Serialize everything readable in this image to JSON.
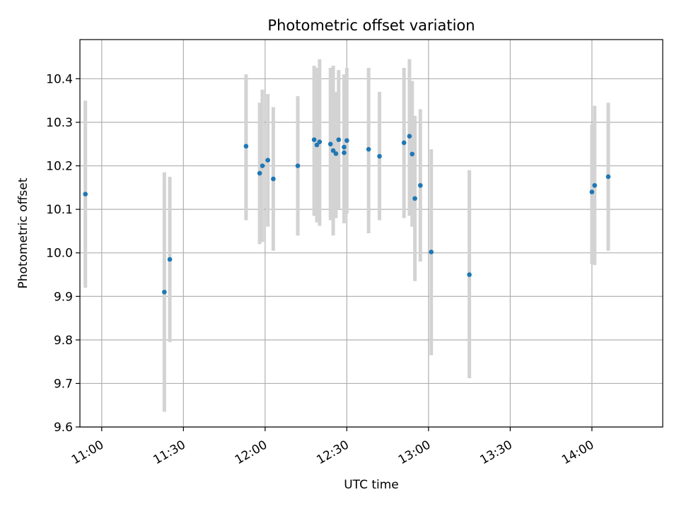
{
  "chart_data": {
    "type": "scatter",
    "title": "Photometric offset variation",
    "xlabel": "UTC time",
    "ylabel": "Photometric offset",
    "grid": true,
    "x_axis_type": "time",
    "x_date": "2000-01-01",
    "xlim": [
      "10:52",
      "14:26"
    ],
    "ylim": [
      9.6,
      10.49
    ],
    "x_ticks": [
      "11:00",
      "11:30",
      "12:00",
      "12:30",
      "13:00",
      "13:30",
      "14:00"
    ],
    "y_ticks": [
      9.6,
      9.7,
      9.8,
      9.9,
      10.0,
      10.1,
      10.2,
      10.3,
      10.4
    ],
    "y_tick_labels": [
      "9.6",
      "9.7",
      "9.8",
      "9.9",
      "10.0",
      "10.1",
      "10.2",
      "10.3",
      "10.4"
    ],
    "colors": {
      "point": "#1f77b4",
      "error_bar": "#d3d3d3",
      "grid": "#b0b0b0",
      "axis": "#000000"
    },
    "series": [
      {
        "points": [
          {
            "x": "10:54",
            "y": 10.135,
            "y_low": 9.92,
            "y_high": 10.35
          },
          {
            "x": "11:23",
            "y": 9.91,
            "y_low": 9.635,
            "y_high": 10.185
          },
          {
            "x": "11:25",
            "y": 9.985,
            "y_low": 9.795,
            "y_high": 10.175
          },
          {
            "x": "11:53",
            "y": 10.245,
            "y_low": 10.075,
            "y_high": 10.41
          },
          {
            "x": "11:58",
            "y": 10.183,
            "y_low": 10.02,
            "y_high": 10.345
          },
          {
            "x": "11:59",
            "y": 10.2,
            "y_low": 10.025,
            "y_high": 10.375
          },
          {
            "x": "12:01",
            "y": 10.213,
            "y_low": 10.06,
            "y_high": 10.365
          },
          {
            "x": "12:03",
            "y": 10.17,
            "y_low": 10.005,
            "y_high": 10.335
          },
          {
            "x": "12:12",
            "y": 10.2,
            "y_low": 10.04,
            "y_high": 10.36
          },
          {
            "x": "12:18",
            "y": 10.26,
            "y_low": 10.085,
            "y_high": 10.43
          },
          {
            "x": "12:19",
            "y": 10.248,
            "y_low": 10.07,
            "y_high": 10.425
          },
          {
            "x": "12:20",
            "y": 10.255,
            "y_low": 10.062,
            "y_high": 10.445
          },
          {
            "x": "12:24",
            "y": 10.25,
            "y_low": 10.075,
            "y_high": 10.425
          },
          {
            "x": "12:25",
            "y": 10.235,
            "y_low": 10.04,
            "y_high": 10.43
          },
          {
            "x": "12:26",
            "y": 10.228,
            "y_low": 10.08,
            "y_high": 10.37
          },
          {
            "x": "12:27",
            "y": 10.26,
            "y_low": 10.1,
            "y_high": 10.42
          },
          {
            "x": "12:29",
            "y": 10.23,
            "y_low": 10.068,
            "y_high": 10.41
          },
          {
            "x": "12:29",
            "y": 10.243,
            "y_low": 10.09,
            "y_high": 10.39
          },
          {
            "x": "12:30",
            "y": 10.258,
            "y_low": 10.09,
            "y_high": 10.425
          },
          {
            "x": "12:38",
            "y": 10.238,
            "y_low": 10.045,
            "y_high": 10.425
          },
          {
            "x": "12:42",
            "y": 10.222,
            "y_low": 10.075,
            "y_high": 10.37
          },
          {
            "x": "12:51",
            "y": 10.253,
            "y_low": 10.08,
            "y_high": 10.425
          },
          {
            "x": "12:53",
            "y": 10.268,
            "y_low": 10.085,
            "y_high": 10.445
          },
          {
            "x": "12:54",
            "y": 10.227,
            "y_low": 10.06,
            "y_high": 10.395
          },
          {
            "x": "12:55",
            "y": 10.125,
            "y_low": 9.935,
            "y_high": 10.315
          },
          {
            "x": "12:57",
            "y": 10.155,
            "y_low": 9.98,
            "y_high": 10.33
          },
          {
            "x": "13:01",
            "y": 10.002,
            "y_low": 9.765,
            "y_high": 10.238
          },
          {
            "x": "13:15",
            "y": 9.95,
            "y_low": 9.712,
            "y_high": 10.19
          },
          {
            "x": "14:00",
            "y": 10.14,
            "y_low": 9.975,
            "y_high": 10.295
          },
          {
            "x": "14:01",
            "y": 10.155,
            "y_low": 9.972,
            "y_high": 10.338
          },
          {
            "x": "14:06",
            "y": 10.175,
            "y_low": 10.005,
            "y_high": 10.345
          }
        ]
      }
    ]
  }
}
